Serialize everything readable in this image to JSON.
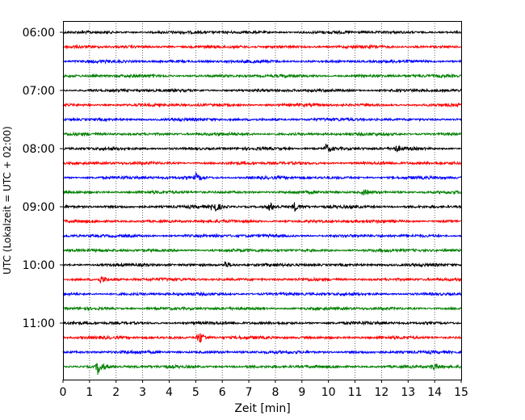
{
  "chart_data": {
    "type": "line",
    "title": "",
    "xlabel": "Zeit  [min]",
    "ylabel": "UTC (Lokalzeit = UTC + 02:00)",
    "xlim": [
      0,
      15
    ],
    "x_ticks": [
      "0",
      "1",
      "2",
      "3",
      "4",
      "5",
      "6",
      "7",
      "8",
      "9",
      "10",
      "11",
      "12",
      "13",
      "14",
      "15"
    ],
    "y_ticks": [
      "06:00",
      "07:00",
      "08:00",
      "09:00",
      "10:00",
      "11:00"
    ],
    "grid": "vertical dotted at each minute",
    "trace_interval_minutes": 15,
    "trace_count": 24,
    "start_time": "06:00",
    "colors": [
      "#000000",
      "#ff0000",
      "#0000ff",
      "#008000"
    ],
    "events": [
      {
        "trace": "08:00",
        "minute": 9.9,
        "strength": 0.55
      },
      {
        "trace": "08:00",
        "minute": 12.5,
        "strength": 0.4
      },
      {
        "trace": "08:30",
        "minute": 5.0,
        "strength": 0.45
      },
      {
        "trace": "08:45",
        "minute": 11.3,
        "strength": 0.4
      },
      {
        "trace": "09:00",
        "minute": 5.65,
        "strength": 0.9
      },
      {
        "trace": "09:00",
        "minute": 7.75,
        "strength": 0.6
      },
      {
        "trace": "09:00",
        "minute": 8.7,
        "strength": 0.6
      },
      {
        "trace": "10:00",
        "minute": 6.1,
        "strength": 0.45
      },
      {
        "trace": "10:15",
        "minute": 1.4,
        "strength": 0.5
      },
      {
        "trace": "11:15",
        "minute": 5.1,
        "strength": 1.0
      },
      {
        "trace": "11:45",
        "minute": 1.3,
        "strength": 1.0
      },
      {
        "trace": "11:45",
        "minute": 13.9,
        "strength": 0.5
      }
    ]
  }
}
